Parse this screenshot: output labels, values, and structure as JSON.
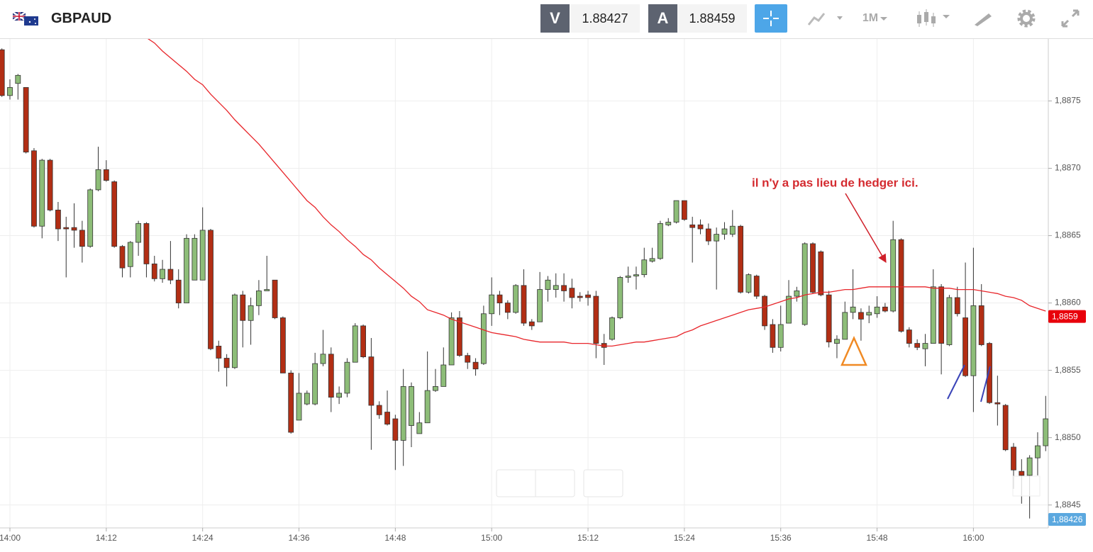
{
  "header": {
    "symbol": "GBPAUD",
    "bid_label": "V",
    "bid": "1.88427",
    "ask_label": "A",
    "ask": "1.88459",
    "timeframe": "1M"
  },
  "chart_data": {
    "type": "candlestick",
    "x": [
      "13:59",
      "14:00",
      "14:01",
      "14:02",
      "14:03",
      "14:04",
      "14:05",
      "14:06",
      "14:07",
      "14:08",
      "14:09",
      "14:10",
      "14:11",
      "14:12",
      "14:13",
      "14:14",
      "14:15",
      "14:16",
      "14:17",
      "14:18",
      "14:19",
      "14:20",
      "14:21",
      "14:22",
      "14:23",
      "14:24",
      "14:25",
      "14:26",
      "14:27",
      "14:28",
      "14:29",
      "14:30",
      "14:31",
      "14:32",
      "14:33",
      "14:34",
      "14:35",
      "14:36",
      "14:37",
      "14:38",
      "14:39",
      "14:40",
      "14:41",
      "14:42",
      "14:43",
      "14:44",
      "14:45",
      "14:46",
      "14:47",
      "14:48",
      "14:49",
      "14:50",
      "14:51",
      "14:52",
      "14:53",
      "14:54",
      "14:55",
      "14:56",
      "14:57",
      "14:58",
      "14:59",
      "15:00",
      "15:01",
      "15:02",
      "15:03",
      "15:04",
      "15:05",
      "15:06",
      "15:07",
      "15:08",
      "15:09",
      "15:10",
      "15:11",
      "15:12",
      "15:13",
      "15:14",
      "15:15",
      "15:16",
      "15:17",
      "15:18",
      "15:19",
      "15:20",
      "15:21",
      "15:22",
      "15:23",
      "15:24",
      "15:25",
      "15:26",
      "15:27",
      "15:28",
      "15:29",
      "15:30",
      "15:31",
      "15:32",
      "15:33",
      "15:34",
      "15:35",
      "15:36",
      "15:37",
      "15:38",
      "15:39",
      "15:40",
      "15:41",
      "15:42",
      "15:43",
      "15:44",
      "15:45",
      "15:46",
      "15:47",
      "15:48",
      "15:49",
      "15:50",
      "15:51",
      "15:52",
      "15:53",
      "15:54",
      "15:55",
      "15:56",
      "15:57",
      "15:58",
      "15:59",
      "16:00",
      "16:01",
      "16:02",
      "16:03",
      "16:04",
      "16:05",
      "16:06",
      "16:07",
      "16:08",
      "16:09"
    ],
    "open": [
      1.88788,
      1.88754,
      1.88763,
      1.8876,
      1.88713,
      1.88657,
      1.88706,
      1.88669,
      1.88656,
      1.88656,
      1.88654,
      1.88642,
      1.88684,
      1.88699,
      1.8869,
      1.88642,
      1.88627,
      1.88645,
      1.88659,
      1.88629,
      1.88618,
      1.88625,
      1.88617,
      1.886,
      1.88617,
      1.88617,
      1.88654,
      1.88568,
      1.88559,
      1.88552,
      1.88606,
      1.88587,
      1.88598,
      1.88609,
      1.88617,
      1.88589,
      1.88548,
      1.88513,
      1.88525,
      1.88525,
      1.88555,
      1.88562,
      1.8853,
      1.88533,
      1.88556,
      1.88583,
      1.8856,
      1.88524,
      1.88519,
      1.88514,
      1.88498,
      1.88509,
      1.88503,
      1.88511,
      1.88535,
      1.88538,
      1.88554,
      1.88589,
      1.88561,
      1.88556,
      1.88555,
      1.88592,
      1.88606,
      1.886,
      1.88593,
      1.88613,
      1.88586,
      1.88586,
      1.8861,
      1.8861,
      1.88613,
      1.88611,
      1.88605,
      1.88606,
      1.88605,
      1.8857,
      1.88573,
      1.88589,
      1.88619,
      1.8862,
      1.88621,
      1.88631,
      1.88633,
      1.88658,
      1.8866,
      1.88676,
      1.88658,
      1.88658,
      1.88655,
      1.88646,
      1.88651,
      1.88651,
      1.88657,
      1.88608,
      1.8862,
      1.88605,
      1.88584,
      1.88567,
      1.88585,
      1.88605,
      1.88584,
      1.88644,
      1.88638,
      1.88606,
      1.8857,
      1.88573,
      1.88593,
      1.88593,
      1.88591,
      1.88592,
      1.88597,
      1.88594,
      1.88647,
      1.8858,
      1.8857,
      1.88566,
      1.8857,
      1.88612,
      1.88569,
      1.88604,
      1.88589,
      1.88546,
      1.88598,
      1.8857,
      1.88526,
      1.88524,
      1.88493,
      1.88475,
      1.88472,
      1.88485,
      1.88494
    ],
    "high": [
      1.88789,
      1.88766,
      1.8877,
      1.8876,
      1.88715,
      1.88707,
      1.88707,
      1.88675,
      1.88664,
      1.88674,
      1.88661,
      1.88685,
      1.88716,
      1.88706,
      1.88691,
      1.88643,
      1.88646,
      1.88661,
      1.8866,
      1.88635,
      1.88632,
      1.88646,
      1.88625,
      1.88651,
      1.88651,
      1.88671,
      1.88655,
      1.88572,
      1.88562,
      1.88607,
      1.88609,
      1.88604,
      1.88617,
      1.88635,
      1.88617,
      1.8859,
      1.8855,
      1.88548,
      1.88535,
      1.88563,
      1.8858,
      1.88567,
      1.88538,
      1.88559,
      1.88585,
      1.88584,
      1.88574,
      1.88527,
      1.88535,
      1.88517,
      1.88551,
      1.88541,
      1.88519,
      1.88564,
      1.88551,
      1.88567,
      1.88593,
      1.88594,
      1.88563,
      1.88559,
      1.88598,
      1.88619,
      1.88609,
      1.88602,
      1.88614,
      1.88625,
      1.88588,
      1.88623,
      1.8862,
      1.88622,
      1.88622,
      1.88618,
      1.88608,
      1.88609,
      1.88609,
      1.88577,
      1.8859,
      1.8862,
      1.88627,
      1.88627,
      1.88641,
      1.88641,
      1.88661,
      1.88663,
      1.88676,
      1.88676,
      1.88664,
      1.88662,
      1.88659,
      1.88656,
      1.8866,
      1.88669,
      1.88658,
      1.88622,
      1.88621,
      1.88606,
      1.88588,
      1.88598,
      1.88617,
      1.88612,
      1.88645,
      1.88645,
      1.88639,
      1.88609,
      1.88576,
      1.88601,
      1.88625,
      1.88596,
      1.88598,
      1.88605,
      1.886,
      1.88661,
      1.88648,
      1.88582,
      1.88573,
      1.88577,
      1.88625,
      1.88614,
      1.88606,
      1.88612,
      1.8863,
      1.88641,
      1.88614,
      1.88571,
      1.88546,
      1.88525,
      1.88496,
      1.88484,
      1.88487,
      1.88504,
      1.88531
    ],
    "low": [
      1.88753,
      1.88751,
      1.88751,
      1.88711,
      1.88656,
      1.88648,
      1.88668,
      1.88646,
      1.88619,
      1.88641,
      1.8863,
      1.88641,
      1.88683,
      1.8869,
      1.88641,
      1.88619,
      1.88619,
      1.88635,
      1.88619,
      1.88616,
      1.88615,
      1.88614,
      1.88596,
      1.886,
      1.88617,
      1.88617,
      1.88565,
      1.88549,
      1.88538,
      1.88551,
      1.88567,
      1.88569,
      1.88591,
      1.88609,
      1.88588,
      1.88548,
      1.88503,
      1.88513,
      1.88524,
      1.88524,
      1.88553,
      1.88519,
      1.88525,
      1.8853,
      1.88556,
      1.88559,
      1.88491,
      1.88514,
      1.88509,
      1.88476,
      1.88479,
      1.88493,
      1.88503,
      1.88511,
      1.88534,
      1.88538,
      1.88554,
      1.8856,
      1.88551,
      1.88546,
      1.88554,
      1.88583,
      1.88591,
      1.88588,
      1.88592,
      1.88583,
      1.8858,
      1.88586,
      1.88601,
      1.88604,
      1.88601,
      1.88596,
      1.88601,
      1.88598,
      1.88559,
      1.88554,
      1.88572,
      1.88588,
      1.88615,
      1.8861,
      1.88619,
      1.8863,
      1.88632,
      1.88657,
      1.88659,
      1.88661,
      1.8863,
      1.88651,
      1.88643,
      1.8861,
      1.88647,
      1.88649,
      1.88607,
      1.88607,
      1.88603,
      1.8858,
      1.88563,
      1.88564,
      1.88585,
      1.88601,
      1.88583,
      1.88607,
      1.88605,
      1.88567,
      1.88559,
      1.88573,
      1.88588,
      1.88572,
      1.88585,
      1.88589,
      1.88593,
      1.88593,
      1.88578,
      1.88567,
      1.88565,
      1.88553,
      1.8857,
      1.88547,
      1.88568,
      1.8859,
      1.88545,
      1.88519,
      1.88568,
      1.88525,
      1.88509,
      1.8849,
      1.88462,
      1.88451,
      1.8844,
      1.88472,
      1.8849
    ],
    "close": [
      1.88754,
      1.8876,
      1.88769,
      1.88712,
      1.88657,
      1.88706,
      1.88669,
      1.88655,
      1.88655,
      1.88654,
      1.88642,
      1.88684,
      1.88699,
      1.88691,
      1.88642,
      1.88626,
      1.88645,
      1.88659,
      1.88629,
      1.88618,
      1.88625,
      1.88617,
      1.886,
      1.88648,
      1.88648,
      1.88654,
      1.88566,
      1.88559,
      1.88552,
      1.88606,
      1.88587,
      1.88598,
      1.88609,
      1.8861,
      1.88589,
      1.88548,
      1.88504,
      1.88533,
      1.88533,
      1.88555,
      1.88562,
      1.8853,
      1.88533,
      1.88556,
      1.88583,
      1.8856,
      1.88524,
      1.88517,
      1.8851,
      1.88498,
      1.88538,
      1.88538,
      1.88511,
      1.88535,
      1.88538,
      1.88554,
      1.88589,
      1.88561,
      1.88556,
      1.88551,
      1.88592,
      1.88606,
      1.886,
      1.88593,
      1.88613,
      1.88585,
      1.88583,
      1.8861,
      1.88617,
      1.88613,
      1.88609,
      1.88604,
      1.88604,
      1.88604,
      1.8857,
      1.88567,
      1.88589,
      1.88619,
      1.8862,
      1.88621,
      1.88632,
      1.88633,
      1.88659,
      1.8866,
      1.88676,
      1.88662,
      1.88656,
      1.88655,
      1.88646,
      1.88651,
      1.88655,
      1.88657,
      1.88608,
      1.88621,
      1.88605,
      1.88583,
      1.88567,
      1.88584,
      1.88605,
      1.88609,
      1.88644,
      1.88608,
      1.88606,
      1.88571,
      1.88573,
      1.88593,
      1.88597,
      1.88588,
      1.88593,
      1.88597,
      1.88594,
      1.88647,
      1.88579,
      1.8857,
      1.88567,
      1.8857,
      1.88612,
      1.8857,
      1.88604,
      1.88592,
      1.88546,
      1.88598,
      1.88569,
      1.88526,
      1.88525,
      1.88491,
      1.88476,
      1.88472,
      1.88485,
      1.88494,
      1.88514
    ],
    "up_color": "#8dbd78",
    "down_color": "#b22e14",
    "ma": {
      "color": "#e8262b",
      "values": [
        null,
        null,
        null,
        null,
        null,
        null,
        null,
        null,
        null,
        null,
        null,
        null,
        null,
        null,
        null,
        null,
        null,
        null,
        1.88797,
        1.88793,
        1.88787,
        1.88782,
        1.88777,
        1.88772,
        1.88766,
        1.88762,
        1.88755,
        1.88749,
        1.88743,
        1.88736,
        1.8873,
        1.88724,
        1.88718,
        1.88711,
        1.88704,
        1.88697,
        1.8869,
        1.88683,
        1.88676,
        1.88671,
        1.88664,
        1.88658,
        1.88653,
        1.88647,
        1.88642,
        1.88636,
        1.88632,
        1.88626,
        1.88621,
        1.88616,
        1.88611,
        1.88605,
        1.88601,
        1.88595,
        1.88593,
        1.88591,
        1.88588,
        1.88586,
        1.88584,
        1.88582,
        1.8858,
        1.88578,
        1.88577,
        1.88576,
        1.88575,
        1.88573,
        1.88572,
        1.88571,
        1.88571,
        1.88571,
        1.88571,
        1.8857,
        1.8857,
        1.8857,
        1.88569,
        1.88568,
        1.88568,
        1.88569,
        1.8857,
        1.88571,
        1.88571,
        1.88572,
        1.88573,
        1.88574,
        1.88575,
        1.88578,
        1.8858,
        1.88583,
        1.88585,
        1.88587,
        1.88589,
        1.88591,
        1.88593,
        1.88595,
        1.88596,
        1.88597,
        1.88599,
        1.88601,
        1.88603,
        1.88604,
        1.88606,
        1.88607,
        1.88608,
        1.88608,
        1.88609,
        1.8861,
        1.8861,
        1.88611,
        1.88612,
        1.88612,
        1.88612,
        1.88612,
        1.88612,
        1.88612,
        1.88612,
        1.88612,
        1.88611,
        1.88611,
        1.88611,
        1.8861,
        1.8861,
        1.8861,
        1.88609,
        1.88608,
        1.88607,
        1.88605,
        1.88604,
        1.88602,
        1.88598,
        1.88596,
        1.88594
      ]
    },
    "ylim": [
      1.88433,
      1.88796
    ],
    "yticks": [
      {
        "value": 1.8845,
        "label": "1,8845"
      },
      {
        "value": 1.885,
        "label": "1,8850"
      },
      {
        "value": 1.8855,
        "label": "1,8855"
      },
      {
        "value": 1.886,
        "label": "1,8860"
      },
      {
        "value": 1.8865,
        "label": "1,8865"
      },
      {
        "value": 1.887,
        "label": "1,8870"
      },
      {
        "value": 1.8875,
        "label": "1,8875"
      }
    ],
    "grid": true,
    "price_tags": [
      {
        "value": 1.8859,
        "label": "1,8859",
        "color": "#e8000b"
      },
      {
        "value": 1.88426,
        "label": "1,88426",
        "color": "#5ba8df"
      }
    ],
    "annotation": "il n'y a pas lieu de hedger ici."
  }
}
